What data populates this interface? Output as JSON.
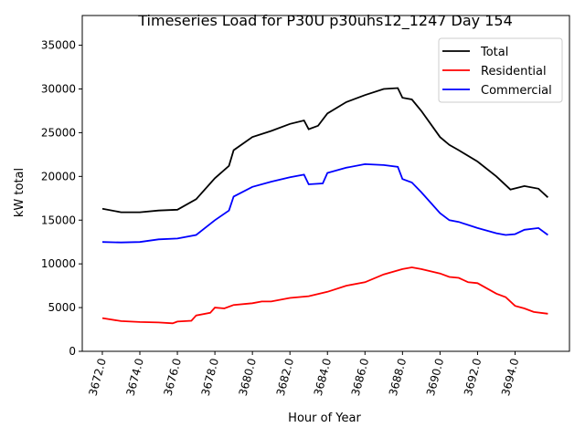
{
  "chart_data": {
    "type": "line",
    "title": "Timeseries Load for P30U p30uhs12_1247  Day 154",
    "xlabel": "Hour of Year",
    "ylabel": "kW total",
    "xlim": [
      3670.93,
      3696.9
    ],
    "ylim": [
      0,
      38400
    ],
    "xticks": [
      3672,
      3674,
      3676,
      3678,
      3680,
      3682,
      3684,
      3686,
      3688,
      3690,
      3692,
      3694
    ],
    "xtick_labels": [
      "3672.0",
      "3674.0",
      "3676.0",
      "3678.0",
      "3680.0",
      "3682.0",
      "3684.0",
      "3686.0",
      "3688.0",
      "3690.0",
      "3692.0",
      "3694.0"
    ],
    "yticks": [
      0,
      5000,
      10000,
      15000,
      20000,
      25000,
      30000,
      35000
    ],
    "ytick_labels": [
      "0",
      "5000",
      "10000",
      "15000",
      "20000",
      "25000",
      "30000",
      "35000"
    ],
    "legend_position": "top-right",
    "series": [
      {
        "name": "Total",
        "color": "#000000",
        "points": [
          [
            3672,
            16300
          ],
          [
            3673,
            15900
          ],
          [
            3674,
            15900
          ],
          [
            3675,
            16100
          ],
          [
            3676,
            16200
          ],
          [
            3677,
            17400
          ],
          [
            3678,
            19800
          ],
          [
            3678.75,
            21200
          ],
          [
            3679,
            23000
          ],
          [
            3680,
            24500
          ],
          [
            3681,
            25200
          ],
          [
            3682,
            26000
          ],
          [
            3682.75,
            26400
          ],
          [
            3683,
            25400
          ],
          [
            3683.5,
            25800
          ],
          [
            3684,
            27200
          ],
          [
            3685,
            28500
          ],
          [
            3686,
            29300
          ],
          [
            3687,
            30000
          ],
          [
            3687.75,
            30100
          ],
          [
            3688,
            29000
          ],
          [
            3688.5,
            28800
          ],
          [
            3689,
            27500
          ],
          [
            3690,
            24500
          ],
          [
            3690.5,
            23600
          ],
          [
            3691,
            23000
          ],
          [
            3692,
            21700
          ],
          [
            3693,
            20000
          ],
          [
            3693.75,
            18500
          ],
          [
            3694.5,
            18900
          ],
          [
            3695.25,
            18600
          ],
          [
            3695.75,
            17600
          ]
        ]
      },
      {
        "name": "Residential",
        "color": "#ff0000",
        "points": [
          [
            3672,
            3800
          ],
          [
            3673,
            3450
          ],
          [
            3674,
            3350
          ],
          [
            3675,
            3300
          ],
          [
            3675.75,
            3200
          ],
          [
            3676,
            3400
          ],
          [
            3676.75,
            3500
          ],
          [
            3677,
            4100
          ],
          [
            3677.75,
            4400
          ],
          [
            3678,
            5000
          ],
          [
            3678.5,
            4900
          ],
          [
            3679,
            5300
          ],
          [
            3680,
            5500
          ],
          [
            3680.5,
            5700
          ],
          [
            3681,
            5700
          ],
          [
            3682,
            6100
          ],
          [
            3683,
            6300
          ],
          [
            3684,
            6800
          ],
          [
            3685,
            7500
          ],
          [
            3686,
            7900
          ],
          [
            3687,
            8800
          ],
          [
            3688,
            9400
          ],
          [
            3688.5,
            9600
          ],
          [
            3689,
            9400
          ],
          [
            3690,
            8900
          ],
          [
            3690.5,
            8500
          ],
          [
            3691,
            8400
          ],
          [
            3691.5,
            7900
          ],
          [
            3692,
            7800
          ],
          [
            3693,
            6600
          ],
          [
            3693.5,
            6200
          ],
          [
            3694,
            5200
          ],
          [
            3694.5,
            4900
          ],
          [
            3695,
            4500
          ],
          [
            3695.75,
            4300
          ]
        ]
      },
      {
        "name": "Commercial",
        "color": "#0000ff",
        "points": [
          [
            3672,
            12500
          ],
          [
            3673,
            12450
          ],
          [
            3674,
            12500
          ],
          [
            3675,
            12800
          ],
          [
            3676,
            12900
          ],
          [
            3677,
            13300
          ],
          [
            3678,
            15000
          ],
          [
            3678.75,
            16100
          ],
          [
            3679,
            17700
          ],
          [
            3680,
            18800
          ],
          [
            3681,
            19400
          ],
          [
            3682,
            19900
          ],
          [
            3682.75,
            20200
          ],
          [
            3683,
            19100
          ],
          [
            3683.75,
            19200
          ],
          [
            3684,
            20400
          ],
          [
            3685,
            21000
          ],
          [
            3686,
            21400
          ],
          [
            3687,
            21300
          ],
          [
            3687.75,
            21100
          ],
          [
            3688,
            19700
          ],
          [
            3688.5,
            19300
          ],
          [
            3689,
            18200
          ],
          [
            3690,
            15800
          ],
          [
            3690.5,
            15000
          ],
          [
            3691,
            14800
          ],
          [
            3692,
            14100
          ],
          [
            3693,
            13500
          ],
          [
            3693.5,
            13300
          ],
          [
            3694,
            13400
          ],
          [
            3694.5,
            13900
          ],
          [
            3695.25,
            14100
          ],
          [
            3695.75,
            13300
          ]
        ]
      }
    ]
  }
}
